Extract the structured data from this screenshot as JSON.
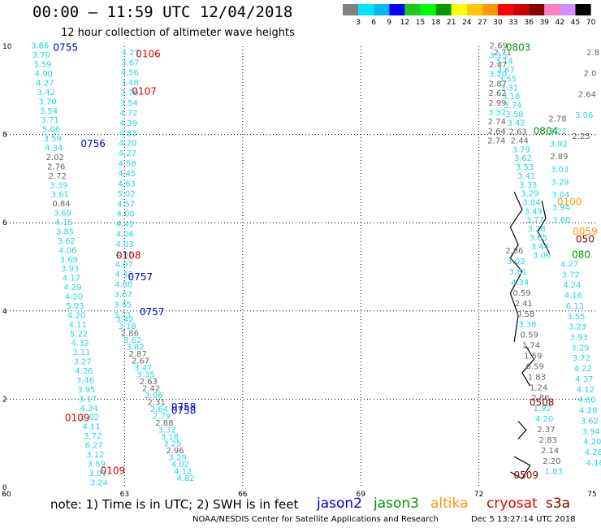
{
  "header": {
    "title": "00:00 – 11:59 UTC 12/04/2018",
    "subtitle": "12 hour collection of altimeter wave heights"
  },
  "color_scale": {
    "labels": [
      "3",
      "6",
      "9",
      "12",
      "15",
      "18",
      "21",
      "24",
      "27",
      "30",
      "33",
      "36",
      "39",
      "42",
      "45",
      "70",
      "(ft)"
    ],
    "colors": [
      "#808080",
      "#00e5ff",
      "#00b8f5",
      "#0000ff",
      "#1fc81f",
      "#00ff00",
      "#009900",
      "#ffff00",
      "#ffc800",
      "#ff9900",
      "#ff0000",
      "#cc0000",
      "#880000",
      "#ff80c0",
      "#d090ff",
      "#000000"
    ]
  },
  "footer": {
    "note": "note: 1) Time is in UTC; 2) SWH is in feet",
    "credit": "NOAA/NESDIS Center for Satellite Applications and Research",
    "generated": "Dec  5 13:27:14 UTC 2018"
  },
  "satellites": [
    {
      "name": "jason2",
      "color": "#0000cc"
    },
    {
      "name": "jason3",
      "color": "#009900"
    },
    {
      "name": "altika",
      "color": "#ff9900"
    },
    {
      "name": "cryosat",
      "color": "#dd0000"
    },
    {
      "name": "s3a",
      "color": "#880000"
    }
  ],
  "chart_data": {
    "type": "scatter",
    "xlim": [
      60,
      75
    ],
    "ylim": [
      0,
      10
    ],
    "x_ticks": [
      60,
      63,
      66,
      69,
      72,
      75
    ],
    "y_ticks": [
      0,
      2,
      4,
      6,
      8,
      10
    ],
    "grid": true,
    "time_labels": [
      {
        "text": "0755",
        "x": 61.5,
        "y": 9.9,
        "sat": "jason2"
      },
      {
        "text": "0756",
        "x": 62.2,
        "y": 7.72,
        "sat": "jason2"
      },
      {
        "text": "0757",
        "x": 63.4,
        "y": 4.7,
        "sat": "jason2"
      },
      {
        "text": "0757",
        "x": 63.7,
        "y": 3.9,
        "sat": "jason2"
      },
      {
        "text": "0758",
        "x": 64.5,
        "y": 1.75,
        "sat": "jason2"
      },
      {
        "text": "0758",
        "x": 64.5,
        "y": 1.67,
        "sat": "jason2"
      },
      {
        "text": "0106",
        "x": 63.6,
        "y": 9.75,
        "sat": "cryosat"
      },
      {
        "text": "0107",
        "x": 63.5,
        "y": 8.9,
        "sat": "cryosat"
      },
      {
        "text": "0108",
        "x": 63.1,
        "y": 5.18,
        "sat": "cryosat"
      },
      {
        "text": "0109",
        "x": 61.8,
        "y": 1.5,
        "sat": "cryosat"
      },
      {
        "text": "0109",
        "x": 62.7,
        "y": 0.3,
        "sat": "cryosat"
      },
      {
        "text": "0803",
        "x": 73.0,
        "y": 9.9,
        "sat": "jason3"
      },
      {
        "text": "0804",
        "x": 73.7,
        "y": 8.0,
        "sat": "jason3"
      },
      {
        "text": "080",
        "x": 74.6,
        "y": 5.2,
        "sat": "jason3"
      },
      {
        "text": "0100",
        "x": 74.3,
        "y": 6.4,
        "sat": "altika"
      },
      {
        "text": "0059",
        "x": 74.7,
        "y": 5.73,
        "sat": "altika"
      },
      {
        "text": "050",
        "x": 74.7,
        "y": 5.55,
        "sat": "s3a"
      },
      {
        "text": "0508",
        "x": 73.6,
        "y": 1.85,
        "sat": "s3a"
      },
      {
        "text": "0509",
        "x": 73.2,
        "y": 0.2,
        "sat": "s3a"
      }
    ],
    "tracks": [
      {
        "name": "jason2-a",
        "sat": "jason2",
        "x0": 60.85,
        "y0": 9.95,
        "x1": 62.35,
        "y1": 0.05,
        "values": [
          "3.86",
          "3.70",
          "3.59",
          "4.90",
          "4.27",
          "3.42",
          "3.70",
          "3.54",
          "3.71",
          "5.06",
          "3.59",
          "4.34",
          "2.02",
          "2.76",
          "2.72",
          "3.39",
          "3.61",
          "0.84",
          "3.69",
          "4.15",
          "3.85",
          "3.62",
          "4.06",
          "3.69",
          "3.93",
          "4.17",
          "4.29",
          "4.20",
          "5.03",
          "4.20",
          "4.11",
          "5.22",
          "4.32",
          "3.11",
          "3.27",
          "4.26",
          "3.46",
          "3.95",
          "3.17",
          "4.34",
          "3.02",
          "4.11",
          "3.72",
          "6.27",
          "3.12",
          "3.59",
          "3.01",
          "3.24"
        ],
        "gray": [
          12,
          13,
          14,
          17
        ]
      },
      {
        "name": "cryosat-a",
        "sat": "cryosat",
        "x0": 63.15,
        "y0": 9.8,
        "x1": 62.95,
        "y1": 3.85,
        "values": [
          "4.27",
          "3.67",
          "4.56",
          "3.48",
          "3.76",
          "3.54",
          "4.72",
          "4.39",
          "4.83",
          "4.20",
          "4.27",
          "4.58",
          "4.45",
          "4.63",
          "5.02",
          "4.57",
          "4.00",
          "4.42",
          "4.06",
          "4.03",
          "4.05",
          "4.07",
          "4.42",
          "4.88",
          "3.67",
          "3.55",
          "3.71"
        ],
        "gray": []
      },
      {
        "name": "jason2-b",
        "sat": "jason2",
        "x0": 63.0,
        "y0": 3.75,
        "x1": 64.55,
        "y1": 0.15,
        "values": [
          "3.42",
          "3.18",
          "2.86",
          "3.62",
          "3.82",
          "2.87",
          "2.67",
          "3.47",
          "3.35",
          "2.63",
          "2.42",
          "2.06",
          "2.31",
          "2.64",
          "2.79",
          "2.88",
          "3.32",
          "3.18",
          "3.25",
          "2.96",
          "3.29",
          "4.02",
          "4.12",
          "4.82"
        ],
        "gray": [
          2,
          5,
          6,
          9,
          10,
          12,
          15,
          19
        ]
      },
      {
        "name": "jason3-a",
        "sat": "jason3",
        "x0": 72.6,
        "y0": 9.8,
        "x1": 73.6,
        "y1": 5.2,
        "values": [
          "2.71",
          "3.14",
          "3.67",
          "3.55",
          "3.31",
          "3.18",
          "3.74",
          "3.58",
          "3.42",
          "2.63",
          "2.44",
          "3.79",
          "3.62",
          "3.53",
          "3.41",
          "3.33",
          "3.29",
          "3.84",
          "3.49",
          "3.77",
          "3.28",
          "3.65",
          "3.44",
          "3.06"
        ],
        "gray": [
          0,
          9,
          10
        ]
      },
      {
        "name": "s3a-a",
        "sat": "s3a",
        "x0": 72.5,
        "y0": 9.95,
        "x1": 72.45,
        "y1": 7.8,
        "values": [
          "2.69",
          "3.15",
          "2.47",
          "3.20",
          "2.87",
          "2.62",
          "2.99",
          "3.32",
          "2.74",
          "2.64",
          "2.74"
        ],
        "gray": [
          0,
          2,
          4,
          5,
          6,
          8,
          9,
          10
        ]
      },
      {
        "name": "s3a-b",
        "sat": "s3a",
        "x0": 72.9,
        "y0": 5.3,
        "x1": 73.9,
        "y1": 0.3,
        "values": [
          "2.86",
          "3.03",
          "3.61",
          "4.34",
          "0.59",
          "2.41",
          "0.58",
          "3.38",
          "0.59",
          "1.74",
          "1.59",
          "0.59",
          "1.83",
          "1.24",
          "2.86",
          "1.92",
          "4.20",
          "2.37",
          "2.83",
          "2.14",
          "2.20",
          "1.83"
        ],
        "gray": [
          0,
          4,
          5,
          6,
          8,
          9,
          10,
          11,
          12,
          13,
          14,
          17,
          18,
          19,
          20
        ]
      },
      {
        "name": "altika-a",
        "sat": "altika",
        "x0": 74.0,
        "y0": 8.3,
        "x1": 74.1,
        "y1": 6.0,
        "values": [
          "2.78",
          "3.21",
          "3.92",
          "2.89",
          "3.03",
          "3.29",
          "3.04",
          "3.94",
          "3.60"
        ],
        "gray": [
          0,
          3
        ]
      },
      {
        "name": "altika-b",
        "sat": "altika",
        "x0": 74.3,
        "y0": 5.0,
        "x1": 74.95,
        "y1": 0.5,
        "values": [
          "4.27",
          "3.72",
          "4.24",
          "4.16",
          "6.13",
          "3.55",
          "3.23",
          "3.93",
          "3.29",
          "3.72",
          "4.22",
          "4.37",
          "4.12",
          "4.60",
          "4.28",
          "3.62",
          "3.94",
          "4.20",
          "4.26",
          "4.18"
        ],
        "gray": []
      },
      {
        "name": "s3a-c",
        "sat": "s3a",
        "x0": 74.9,
        "y0": 9.8,
        "x1": 74.6,
        "y1": 7.9,
        "values": [
          "2.8",
          "2.0",
          "2.64",
          "3.06",
          "2.25"
        ],
        "gray": [
          0,
          1,
          2,
          4
        ]
      }
    ]
  }
}
